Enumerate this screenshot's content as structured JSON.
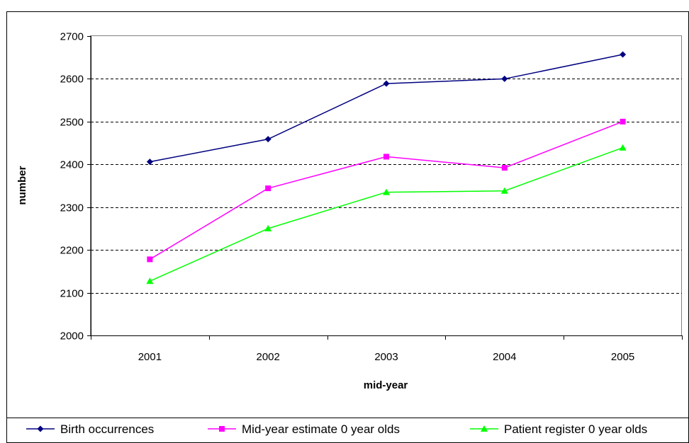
{
  "chart_data": {
    "type": "line",
    "categories": [
      "2001",
      "2002",
      "2003",
      "2004",
      "2005"
    ],
    "xlabel": "mid-year",
    "ylabel": "number",
    "ylim": [
      2000,
      2700
    ],
    "yticks": [
      2000,
      2100,
      2200,
      2300,
      2400,
      2500,
      2600,
      2700
    ],
    "grid": "horizontal dashed",
    "legend": "bottom",
    "series": [
      {
        "name": "Birth occurrences",
        "values": [
          2406,
          2459,
          2589,
          2600,
          2657
        ],
        "color": "#000080",
        "marker": "diamond"
      },
      {
        "name": "Mid-year estimate 0 year olds",
        "values": [
          2178,
          2344,
          2418,
          2392,
          2500
        ],
        "color": "#ff00ff",
        "marker": "square"
      },
      {
        "name": "Patient register 0 year olds",
        "values": [
          2127,
          2250,
          2335,
          2338,
          2439
        ],
        "color": "#00ff00",
        "marker": "triangle"
      }
    ]
  }
}
